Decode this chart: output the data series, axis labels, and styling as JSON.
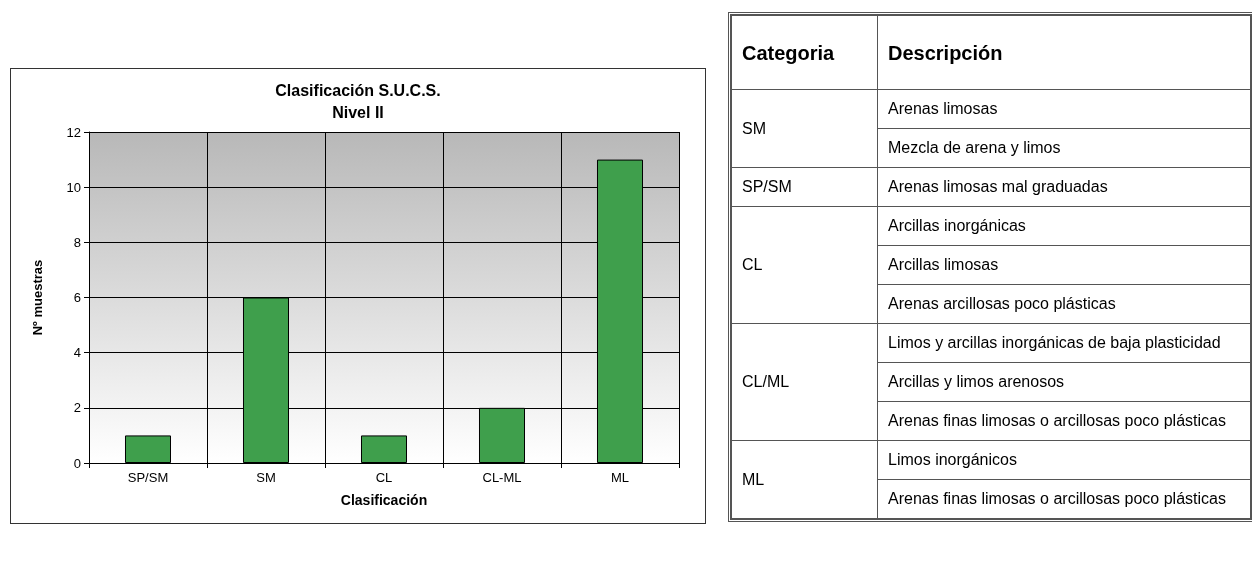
{
  "chart_data": [
    {
      "type": "bar",
      "title": "Clasificación S.U.C.S.",
      "subtitle": "Nivel II",
      "xlabel": "Clasificación",
      "ylabel": "Nº muestras",
      "categories": [
        "SP/SM",
        "SM",
        "CL",
        "CL-ML",
        "ML"
      ],
      "values": [
        1,
        6,
        1,
        2,
        11
      ],
      "color": "#3f9f4c",
      "ylim": [
        0,
        12
      ],
      "yticks": [
        0,
        2,
        4,
        6,
        8,
        10,
        12
      ],
      "grid": true
    },
    {
      "type": "other",
      "categories": [
        "Categoria",
        "Descripción"
      ],
      "cell_labels": [
        [
          "SM",
          "Arenas limosas"
        ],
        [
          null,
          "Mezcla de arena y limos"
        ],
        [
          "SP/SM",
          "Arenas limosas mal graduadas"
        ],
        [
          "CL",
          "Arcillas inorgánicas"
        ],
        [
          null,
          "Arcillas limosas"
        ],
        [
          null,
          "Arenas arcillosas poco plásticas"
        ],
        [
          "CL/ML",
          "Limos y arcillas inorgánicas de baja plasticidad"
        ],
        [
          null,
          "Arcillas y limos arenosos"
        ],
        [
          null,
          "Arenas finas limosas o arcillosas poco plásticas"
        ],
        [
          "ML",
          "Limos inorgánicos"
        ],
        [
          null,
          "Arenas finas limosas o arcillosas poco plásticas"
        ]
      ]
    }
  ]
}
